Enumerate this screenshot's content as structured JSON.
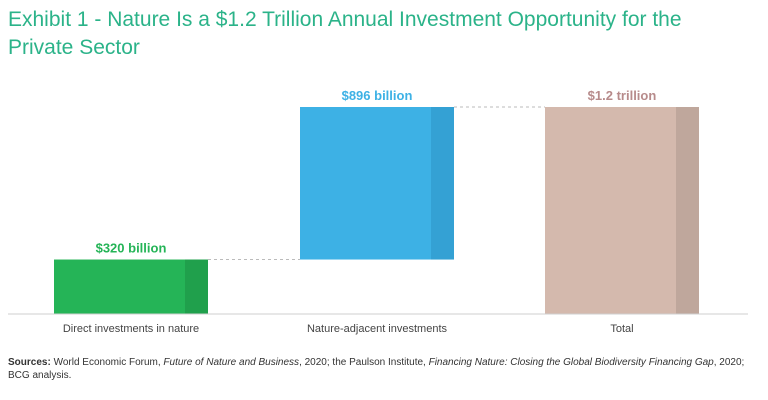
{
  "title": "Exhibit 1 - Nature Is a $1.2 Trillion Annual Investment Opportunity for the Private Sector",
  "colors": {
    "title": "#2bb389",
    "direct": "#25b457",
    "direct_shade": "#20a04c",
    "adjacent": "#3db1e5",
    "adjacent_shade": "#34a1d4",
    "total": "#d4b9ad",
    "total_shade": "#bfa79c",
    "label_total": "#b78b8b"
  },
  "chart_data": {
    "type": "bar",
    "subtype": "waterfall",
    "categories": [
      "Direct investments in nature",
      "Nature-adjacent investments",
      "Total"
    ],
    "values": [
      320,
      896,
      1216
    ],
    "bases": [
      0,
      320,
      0
    ],
    "data_labels": [
      "$320 billion",
      "$896 billion",
      "$1.2 trillion"
    ],
    "unit": "billion USD",
    "ylim": [
      0,
      1216
    ],
    "title": "",
    "xlabel": "",
    "ylabel": "",
    "grid": false,
    "legend": "none"
  },
  "sources": {
    "label": "Sources:",
    "part1": " World Economic Forum, ",
    "italic1": "Future of Nature and Business",
    "part2": ", 2020; the Paulson Institute, ",
    "italic2": "Financing Nature: Closing the Global Biodiversity Financing Gap",
    "part3": ", 2020; BCG analysis."
  }
}
